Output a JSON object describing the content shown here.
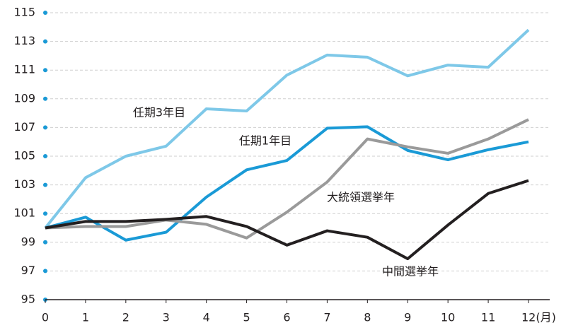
{
  "chart_data": {
    "type": "line",
    "x": [
      0,
      1,
      2,
      3,
      4,
      5,
      6,
      7,
      8,
      9,
      10,
      11,
      12
    ],
    "xlim": [
      0,
      12
    ],
    "xticks": [
      0,
      1,
      2,
      3,
      4,
      5,
      6,
      7,
      8,
      9,
      10,
      11,
      {
        "value": 12,
        "label": "12(月)"
      }
    ],
    "ylim": [
      95,
      115
    ],
    "yticks": [
      95,
      97,
      99,
      101,
      103,
      105,
      107,
      109,
      111,
      113,
      115
    ],
    "grid": true,
    "series": [
      {
        "name": "任期3年目",
        "color": "#7ec8e8",
        "values": [
          100,
          103.5,
          105.0,
          105.7,
          108.3,
          108.15,
          110.65,
          112.05,
          111.9,
          110.6,
          111.35,
          111.2,
          113.8
        ]
      },
      {
        "name": "任期1年目",
        "color": "#1a9ad6",
        "values": [
          100,
          100.75,
          99.15,
          99.7,
          102.15,
          104.05,
          104.7,
          106.95,
          107.05,
          105.4,
          104.75,
          105.45,
          106.0
        ]
      },
      {
        "name": "大統領選挙年",
        "color": "#9a9a9a",
        "values": [
          100,
          100.1,
          100.1,
          100.55,
          100.25,
          99.3,
          101.1,
          103.2,
          106.2,
          105.65,
          105.2,
          106.2,
          107.55
        ]
      },
      {
        "name": "中間選挙年",
        "color": "#231f20",
        "values": [
          100,
          100.45,
          100.45,
          100.6,
          100.8,
          100.1,
          98.8,
          99.8,
          99.35,
          97.85,
          100.2,
          102.4,
          103.3
        ]
      }
    ]
  }
}
